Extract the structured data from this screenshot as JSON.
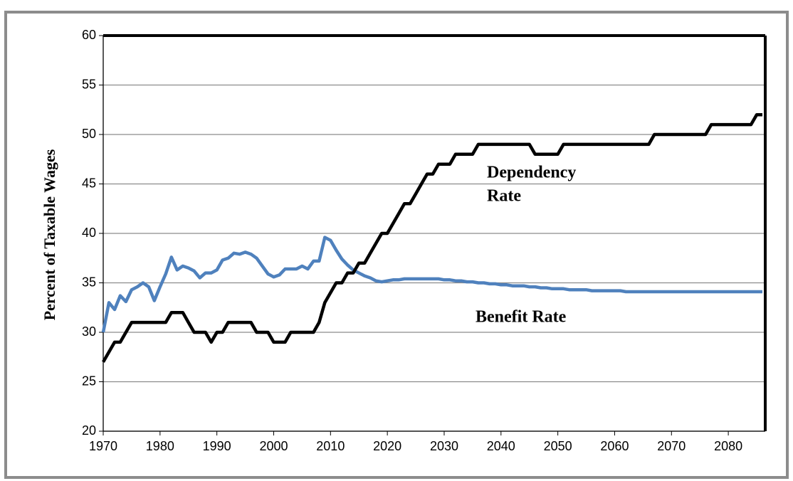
{
  "chart_data": {
    "type": "line",
    "ylabel": "Percent of Taxable Wages",
    "x": [
      1970,
      1971,
      1972,
      1973,
      1974,
      1975,
      1976,
      1977,
      1978,
      1979,
      1980,
      1981,
      1982,
      1983,
      1984,
      1985,
      1986,
      1987,
      1988,
      1989,
      1990,
      1991,
      1992,
      1993,
      1994,
      1995,
      1996,
      1997,
      1998,
      1999,
      2000,
      2001,
      2002,
      2003,
      2004,
      2005,
      2006,
      2007,
      2008,
      2009,
      2010,
      2011,
      2012,
      2013,
      2014,
      2015,
      2016,
      2017,
      2018,
      2019,
      2020,
      2021,
      2022,
      2023,
      2024,
      2025,
      2026,
      2027,
      2028,
      2029,
      2030,
      2031,
      2032,
      2033,
      2034,
      2035,
      2036,
      2037,
      2038,
      2039,
      2040,
      2041,
      2042,
      2043,
      2044,
      2045,
      2046,
      2047,
      2048,
      2049,
      2050,
      2051,
      2052,
      2053,
      2054,
      2055,
      2056,
      2057,
      2058,
      2059,
      2060,
      2061,
      2062,
      2063,
      2064,
      2065,
      2066,
      2067,
      2068,
      2069,
      2070,
      2071,
      2072,
      2073,
      2074,
      2075,
      2076,
      2077,
      2078,
      2079,
      2080,
      2081,
      2082,
      2083,
      2084,
      2085,
      2086
    ],
    "series": [
      {
        "name": "Benefit Rate",
        "color": "#4f81bd",
        "values": [
          30,
          33,
          32.3,
          33.7,
          33.1,
          34.3,
          34.6,
          35,
          34.6,
          33.2,
          34.6,
          35.9,
          37.6,
          36.3,
          36.7,
          36.5,
          36.2,
          35.5,
          36,
          36,
          36.3,
          37.3,
          37.5,
          38,
          37.9,
          38.1,
          37.9,
          37.5,
          36.7,
          35.9,
          35.6,
          35.8,
          36.4,
          36.4,
          36.4,
          36.7,
          36.4,
          37.2,
          37.2,
          39.6,
          39.3,
          38.3,
          37.4,
          36.8,
          36.3,
          36,
          35.7,
          35.5,
          35.2,
          35.1,
          35.2,
          35.3,
          35.3,
          35.4,
          35.4,
          35.4,
          35.4,
          35.4,
          35.4,
          35.4,
          35.3,
          35.3,
          35.2,
          35.2,
          35.1,
          35.1,
          35,
          35,
          34.9,
          34.9,
          34.8,
          34.8,
          34.7,
          34.7,
          34.7,
          34.6,
          34.6,
          34.5,
          34.5,
          34.4,
          34.4,
          34.4,
          34.3,
          34.3,
          34.3,
          34.3,
          34.2,
          34.2,
          34.2,
          34.2,
          34.2,
          34.2,
          34.1,
          34.1,
          34.1,
          34.1,
          34.1,
          34.1,
          34.1,
          34.1,
          34.1,
          34.1,
          34.1,
          34.1,
          34.1,
          34.1,
          34.1,
          34.1,
          34.1,
          34.1,
          34.1,
          34.1,
          34.1,
          34.1,
          34.1,
          34.1,
          34.1
        ]
      },
      {
        "name": "Dependency Rate",
        "color": "#000000",
        "values": [
          27,
          28,
          29,
          29,
          30,
          31,
          31,
          31,
          31,
          31,
          31,
          31,
          32,
          32,
          32,
          31,
          30,
          30,
          30,
          29,
          30,
          30,
          31,
          31,
          31,
          31,
          31,
          30,
          30,
          30,
          29,
          29,
          29,
          30,
          30,
          30,
          30,
          30,
          31,
          33,
          34,
          35,
          35,
          36,
          36,
          37,
          37,
          38,
          39,
          40,
          40,
          41,
          42,
          43,
          43,
          44,
          45,
          46,
          46,
          47,
          47,
          47,
          48,
          48,
          48,
          48,
          49,
          49,
          49,
          49,
          49,
          49,
          49,
          49,
          49,
          49,
          48,
          48,
          48,
          48,
          48,
          49,
          49,
          49,
          49,
          49,
          49,
          49,
          49,
          49,
          49,
          49,
          49,
          49,
          49,
          49,
          49,
          50,
          50,
          50,
          50,
          50,
          50,
          50,
          50,
          50,
          50,
          51,
          51,
          51,
          51,
          51,
          51,
          51,
          51,
          52,
          52
        ]
      }
    ],
    "annotations": [
      {
        "lines": [
          "Dependency",
          "Rate"
        ]
      },
      {
        "lines": [
          "Benefit Rate"
        ]
      }
    ],
    "xlim": [
      1970,
      2086.5
    ],
    "xticks": [
      1970,
      1980,
      1990,
      2000,
      2010,
      2020,
      2030,
      2040,
      2050,
      2060,
      2070,
      2080
    ],
    "ylim": [
      20,
      60
    ],
    "yticks": [
      20,
      25,
      30,
      35,
      40,
      45,
      50,
      55,
      60
    ],
    "grid": true
  }
}
